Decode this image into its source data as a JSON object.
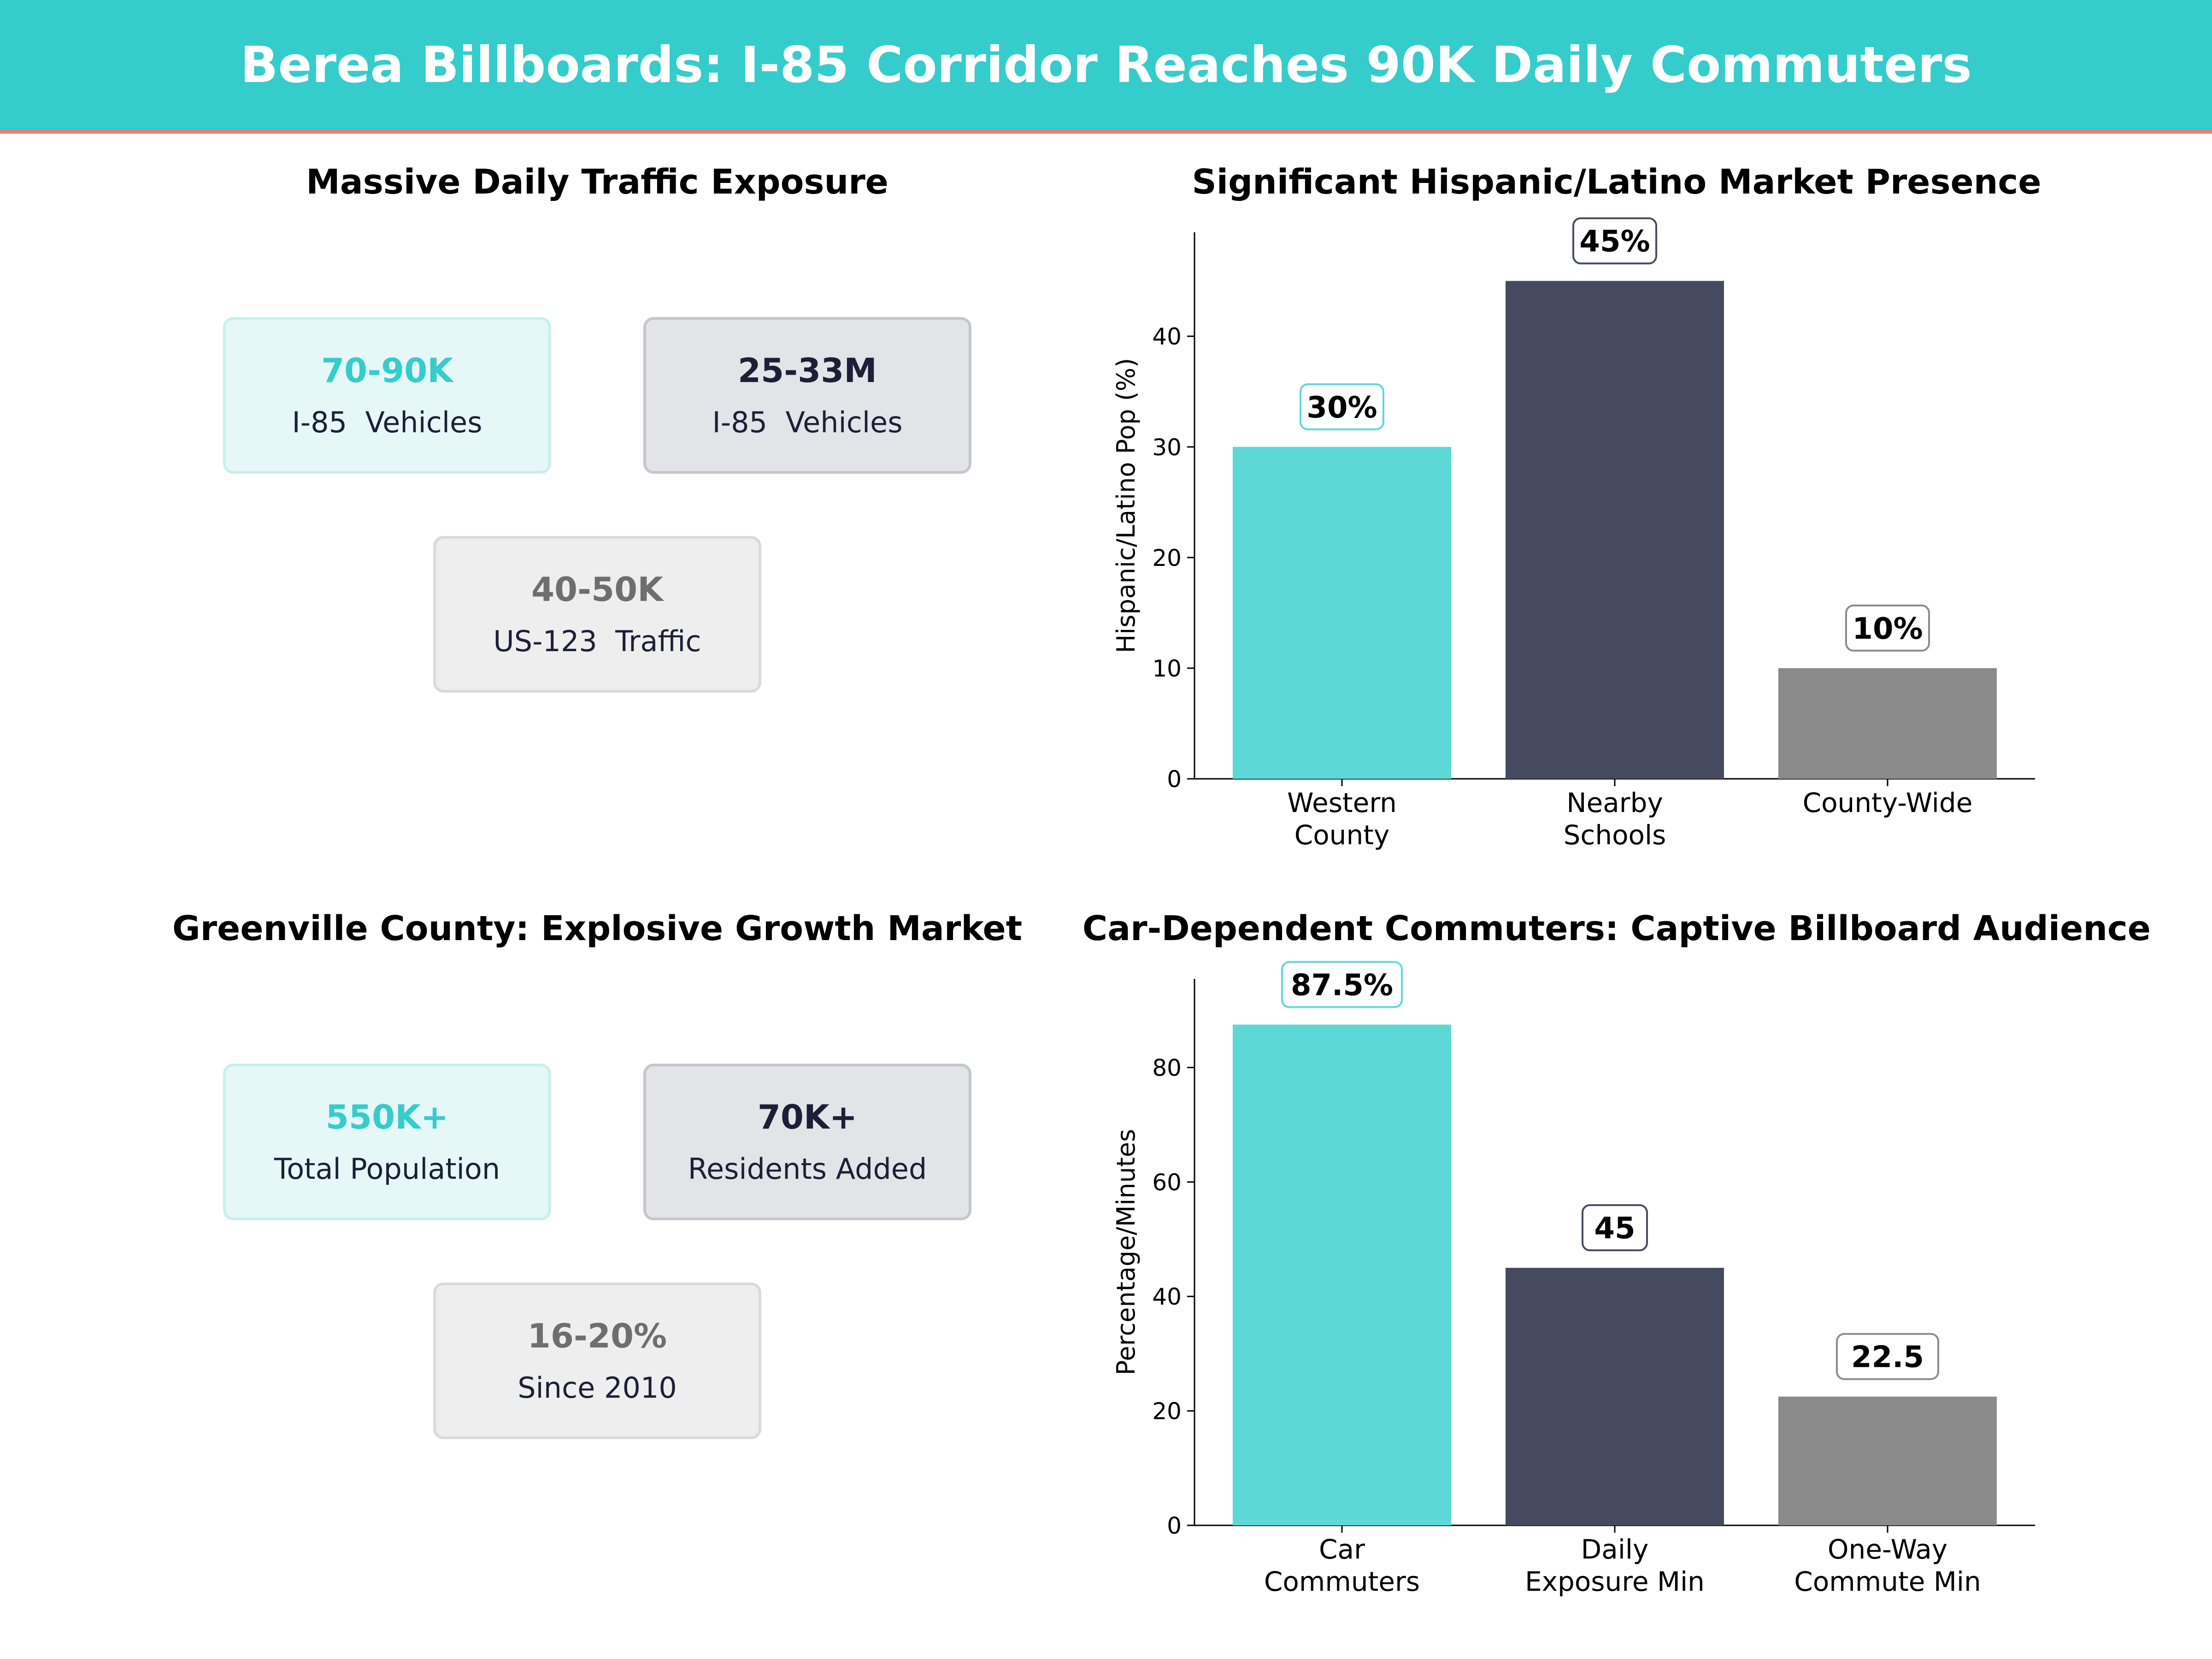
{
  "banner": {
    "title": "Berea Billboards: I-85 Corridor Reaches 90K Daily Commuters"
  },
  "colors": {
    "teal": "#5dd8d6",
    "navy": "#454a60",
    "gray": "#8a8a8a",
    "banner": "#35cccc",
    "accent_line": "#ec7c7c"
  },
  "panels": {
    "traffic": {
      "title": "Massive Daily Traffic Exposure",
      "cards": [
        {
          "big": "70-90K",
          "small": "I-85  Vehicles"
        },
        {
          "big": "25-33M",
          "small": "I-85  Vehicles"
        },
        {
          "big": "40-50K",
          "small": "US-123  Traffic"
        }
      ]
    },
    "growth": {
      "title": "Greenville County: Explosive Growth Market",
      "cards": [
        {
          "big": "550K+",
          "small": "Total Population"
        },
        {
          "big": "70K+",
          "small": "Residents Added"
        },
        {
          "big": "16-20%",
          "small": "Since 2010"
        }
      ]
    }
  },
  "chart_data": [
    {
      "type": "bar",
      "title": "Significant Hispanic/Latino Market Presence",
      "categories": [
        [
          "Western",
          "County"
        ],
        [
          "Nearby",
          "Schools"
        ],
        [
          "County-Wide"
        ]
      ],
      "values": [
        30,
        45,
        10
      ],
      "labels": [
        "30%",
        "45%",
        "10%"
      ],
      "ylabel": "Hispanic/Latino Pop (%)",
      "ylim": [
        0,
        49.4
      ],
      "yticks": [
        0,
        10,
        20,
        30,
        40
      ],
      "grid": false
    },
    {
      "type": "bar",
      "title": "Car-Dependent Commuters: Captive Billboard Audience",
      "categories": [
        [
          "Car",
          "Commuters"
        ],
        [
          "Daily",
          "Exposure Min"
        ],
        [
          "One-Way",
          "Commute Min"
        ]
      ],
      "values": [
        87.5,
        45,
        22.5
      ],
      "labels": [
        "87.5%",
        "45",
        "22.5"
      ],
      "ylabel": "Percentage/Minutes",
      "ylim": [
        0,
        95.5
      ],
      "yticks": [
        0,
        20,
        40,
        60,
        80
      ],
      "grid": false
    }
  ]
}
